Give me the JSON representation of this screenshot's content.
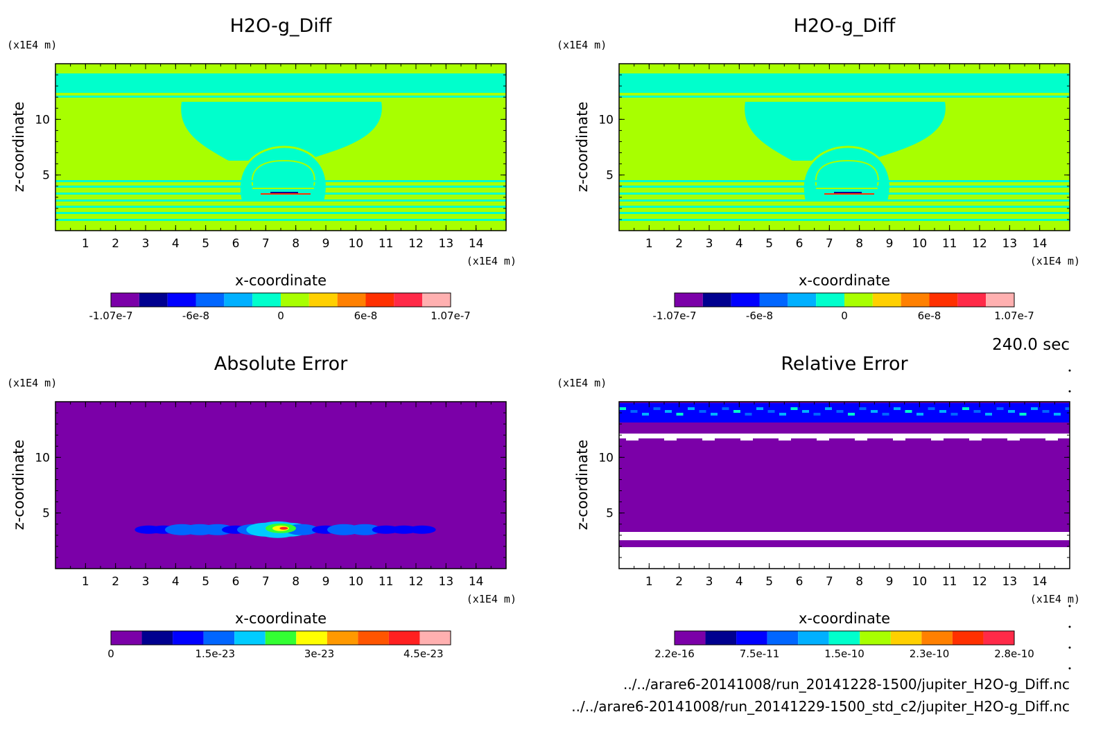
{
  "palette": {
    "H2O_diff": [
      "#7b00a8",
      "#00008f",
      "#0000ff",
      "#0066ff",
      "#00b0ff",
      "#00ffcc",
      "#a8ff00",
      "#ffd000",
      "#ff8000",
      "#ff3000",
      "#ff2a48",
      "#ffb0b0"
    ],
    "abs_err": [
      "#7b00a8",
      "#00008f",
      "#0000ff",
      "#0066ff",
      "#00ccff",
      "#33ff33",
      "#ffff00",
      "#ff9900",
      "#ff5500",
      "#ff2020",
      "#ffb0b0"
    ],
    "rel_err": [
      "#7b00a8",
      "#00008f",
      "#0000ff",
      "#0066ff",
      "#00b0ff",
      "#00ffcc",
      "#a8ff00",
      "#ffd000",
      "#ff8000",
      "#ff3000",
      "#ff2a48"
    ]
  },
  "chart_data": [
    {
      "id": "top-left",
      "type": "heatmap",
      "title": "H2O-g_Diff",
      "xlabel": "x-coordinate",
      "ylabel": "z-coordinate",
      "x_unit": "(x1E4 m)",
      "y_unit": "(x1E4 m)",
      "xlim": [
        0,
        15
      ],
      "ylim": [
        0,
        15
      ],
      "x_ticks": [
        1,
        2,
        3,
        4,
        5,
        6,
        7,
        8,
        9,
        10,
        11,
        12,
        13,
        14
      ],
      "y_ticks": [
        5,
        10
      ],
      "field": "diff",
      "colorbar_labels": [
        "-1.07e-7",
        "-6e-8",
        "0",
        "6e-8",
        "1.07e-7"
      ]
    },
    {
      "id": "top-right",
      "type": "heatmap",
      "title": "H2O-g_Diff",
      "xlabel": "x-coordinate",
      "ylabel": "z-coordinate",
      "x_unit": "(x1E4 m)",
      "y_unit": "(x1E4 m)",
      "xlim": [
        0,
        15
      ],
      "ylim": [
        0,
        15
      ],
      "x_ticks": [
        1,
        2,
        3,
        4,
        5,
        6,
        7,
        8,
        9,
        10,
        11,
        12,
        13,
        14
      ],
      "y_ticks": [
        5,
        10
      ],
      "field": "diff",
      "colorbar_labels": [
        "-1.07e-7",
        "-6e-8",
        "0",
        "6e-8",
        "1.07e-7"
      ]
    },
    {
      "id": "bottom-left",
      "type": "heatmap",
      "title": "Absolute Error",
      "xlabel": "x-coordinate",
      "ylabel": "z-coordinate",
      "x_unit": "(x1E4 m)",
      "y_unit": "(x1E4 m)",
      "xlim": [
        0,
        15
      ],
      "ylim": [
        0,
        15
      ],
      "x_ticks": [
        1,
        2,
        3,
        4,
        5,
        6,
        7,
        8,
        9,
        10,
        11,
        12,
        13,
        14
      ],
      "y_ticks": [
        5,
        10
      ],
      "field": "abs",
      "colorbar_labels": [
        "0",
        "1.5e-23",
        "3e-23",
        "4.5e-23"
      ]
    },
    {
      "id": "bottom-right",
      "type": "heatmap",
      "title": "Relative Error",
      "xlabel": "x-coordinate",
      "ylabel": "z-coordinate",
      "x_unit": "(x1E4 m)",
      "y_unit": "(x1E4 m)",
      "xlim": [
        0,
        15
      ],
      "ylim": [
        0,
        15
      ],
      "x_ticks": [
        1,
        2,
        3,
        4,
        5,
        6,
        7,
        8,
        9,
        10,
        11,
        12,
        13,
        14
      ],
      "y_ticks": [
        5,
        10
      ],
      "field": "rel",
      "colorbar_labels": [
        "2.2e-16",
        "7.5e-11",
        "1.5e-10",
        "2.3e-10",
        "2.8e-10"
      ]
    }
  ],
  "time_label": "240.0 sec",
  "files": [
    "../../arare6-20141008/run_20141228-1500/jupiter_H2O-g_Diff.nc",
    "../../arare6-20141008/run_20141229-1500_std_c2/jupiter_H2O-g_Diff.nc"
  ]
}
